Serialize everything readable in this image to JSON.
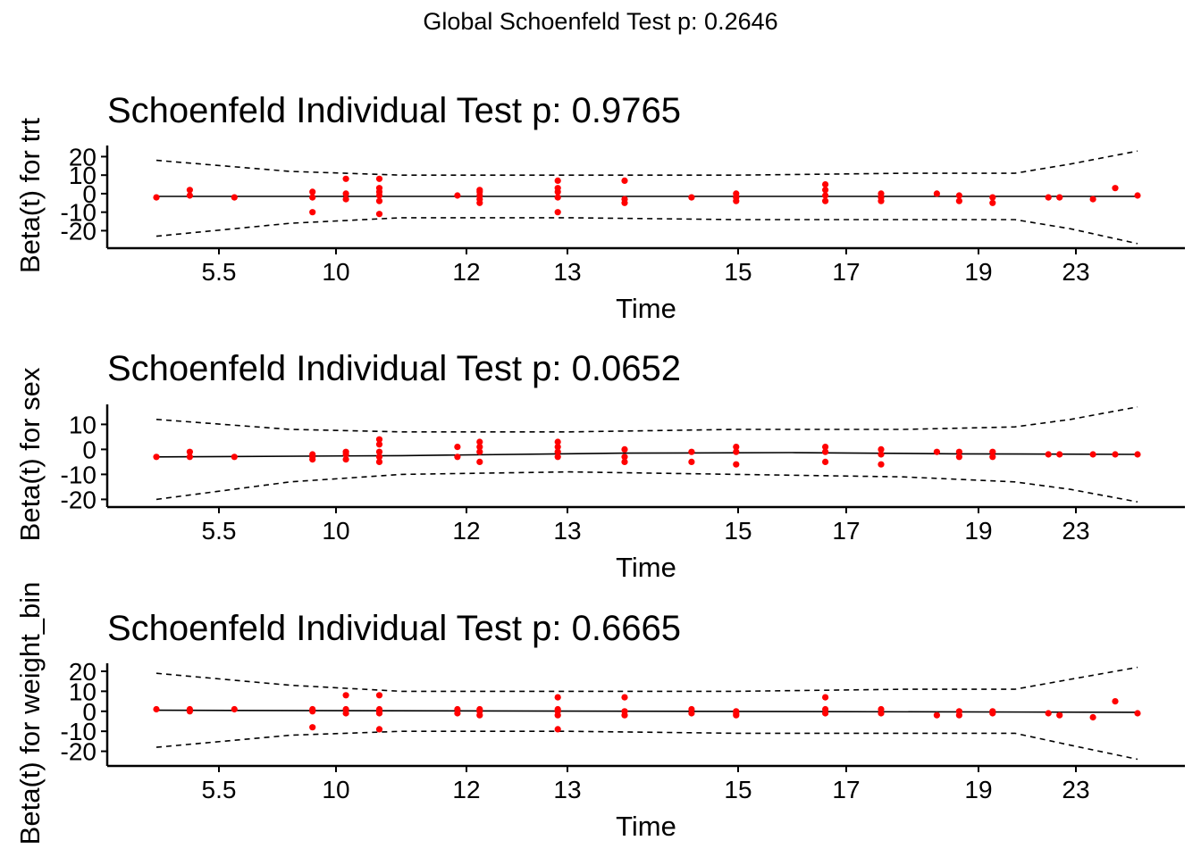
{
  "global_title": "Global Schoenfeld Test p: 0.2646",
  "colors": {
    "points": "#ff0000",
    "lines": "#000000"
  },
  "x_tick_labels": [
    "5.5",
    "10",
    "12",
    "13",
    "15",
    "17",
    "19",
    "23"
  ],
  "chart_data": [
    {
      "type": "scatter",
      "title": "Schoenfeld Individual Test p: 0.9765",
      "xlabel": "Time",
      "ylabel": "Beta(t) for trt",
      "yticks": [
        20,
        10,
        0,
        -10,
        -20
      ],
      "ylim": [
        -28,
        26
      ],
      "x_ticks": [
        "5.5",
        "10",
        "12",
        "13",
        "15",
        "17",
        "19",
        "23"
      ],
      "x": [
        0.3,
        0.6,
        1,
        1.7,
        2,
        2.3,
        3,
        3.5,
        4.3,
        4.5,
        5.1,
        5.3,
        6.3,
        6.8,
        7,
        7.3,
        7.8,
        8.3,
        8.5,
        9.2,
        9.5,
        9.8
      ],
      "points": [
        [
          0.3,
          -2
        ],
        [
          0.6,
          -1
        ],
        [
          0.6,
          2
        ],
        [
          1,
          -2
        ],
        [
          1.7,
          -10
        ],
        [
          1.7,
          -2
        ],
        [
          1.7,
          1
        ],
        [
          2,
          -3
        ],
        [
          2,
          0
        ],
        [
          2,
          8
        ],
        [
          2.3,
          -11
        ],
        [
          2.3,
          -4
        ],
        [
          2.3,
          -1
        ],
        [
          2.3,
          1
        ],
        [
          2.3,
          3
        ],
        [
          2.3,
          8
        ],
        [
          3,
          -1
        ],
        [
          3.2,
          -5
        ],
        [
          3.2,
          -3
        ],
        [
          3.2,
          -1
        ],
        [
          3.2,
          1
        ],
        [
          3.2,
          2
        ],
        [
          3.9,
          -10
        ],
        [
          3.9,
          -2
        ],
        [
          3.9,
          1
        ],
        [
          3.9,
          3
        ],
        [
          3.9,
          7
        ],
        [
          4.5,
          -5
        ],
        [
          4.5,
          -3
        ],
        [
          4.5,
          7
        ],
        [
          5.1,
          -2
        ],
        [
          5.5,
          -4
        ],
        [
          5.5,
          -2
        ],
        [
          5.5,
          0
        ],
        [
          6.3,
          -4
        ],
        [
          6.3,
          -1
        ],
        [
          6.3,
          2
        ],
        [
          6.3,
          5
        ],
        [
          6.8,
          -4
        ],
        [
          6.8,
          -2
        ],
        [
          6.8,
          0
        ],
        [
          7.3,
          0
        ],
        [
          7.5,
          -4
        ],
        [
          7.5,
          -1
        ],
        [
          7.8,
          -5
        ],
        [
          7.8,
          -2
        ],
        [
          8.3,
          -2
        ],
        [
          8.4,
          -2
        ],
        [
          8.7,
          -3
        ],
        [
          8.9,
          3
        ],
        [
          9.1,
          -1
        ]
      ],
      "fit": [
        [
          0.3,
          -1.5
        ],
        [
          9.1,
          -1.5
        ]
      ],
      "ci_upper": [
        [
          0.3,
          18
        ],
        [
          1.5,
          12
        ],
        [
          2.5,
          10
        ],
        [
          4,
          10
        ],
        [
          5.5,
          10
        ],
        [
          7,
          11
        ],
        [
          8,
          11
        ],
        [
          8.5,
          16
        ],
        [
          9.1,
          23
        ]
      ],
      "ci_lower": [
        [
          0.3,
          -23
        ],
        [
          1.5,
          -16
        ],
        [
          2.5,
          -13
        ],
        [
          4,
          -13
        ],
        [
          5.5,
          -14
        ],
        [
          7,
          -14
        ],
        [
          8,
          -14
        ],
        [
          8.5,
          -19
        ],
        [
          9.1,
          -27
        ]
      ]
    },
    {
      "type": "scatter",
      "title": "Schoenfeld Individual Test p: 0.0652",
      "xlabel": "Time",
      "ylabel": "Beta(t) for sex",
      "yticks": [
        10,
        0,
        -10,
        -20
      ],
      "ylim": [
        -22,
        18
      ],
      "x_ticks": [
        "5.5",
        "10",
        "12",
        "13",
        "15",
        "17",
        "19",
        "23"
      ],
      "points": [
        [
          0.3,
          -3
        ],
        [
          0.6,
          -3
        ],
        [
          0.6,
          -1
        ],
        [
          1,
          -3
        ],
        [
          1.7,
          -4
        ],
        [
          1.7,
          -3
        ],
        [
          1.7,
          -2
        ],
        [
          2,
          -4
        ],
        [
          2,
          -2
        ],
        [
          2,
          -1
        ],
        [
          2.3,
          -5
        ],
        [
          2.3,
          -3
        ],
        [
          2.3,
          -1
        ],
        [
          2.3,
          2
        ],
        [
          2.3,
          4
        ],
        [
          3,
          -3
        ],
        [
          3,
          1
        ],
        [
          3.2,
          -5
        ],
        [
          3.2,
          -1
        ],
        [
          3.2,
          1
        ],
        [
          3.2,
          3
        ],
        [
          3.9,
          -3
        ],
        [
          3.9,
          -1
        ],
        [
          3.9,
          1
        ],
        [
          3.9,
          3
        ],
        [
          4.5,
          -5
        ],
        [
          4.5,
          -3
        ],
        [
          4.5,
          0
        ],
        [
          5.1,
          -5
        ],
        [
          5.1,
          -1
        ],
        [
          5.5,
          -6
        ],
        [
          5.5,
          -1
        ],
        [
          5.5,
          1
        ],
        [
          6.3,
          -5
        ],
        [
          6.3,
          -1
        ],
        [
          6.3,
          1
        ],
        [
          6.8,
          -6
        ],
        [
          6.8,
          -2
        ],
        [
          6.8,
          0
        ],
        [
          7.3,
          -1
        ],
        [
          7.5,
          -3
        ],
        [
          7.5,
          -1
        ],
        [
          7.8,
          -3
        ],
        [
          7.8,
          -1
        ],
        [
          8.3,
          -2
        ],
        [
          8.4,
          -2
        ],
        [
          8.7,
          -2
        ],
        [
          8.9,
          -2
        ],
        [
          9.1,
          -2
        ]
      ],
      "fit": [
        [
          0.3,
          -3
        ],
        [
          2.5,
          -2.5
        ],
        [
          4.5,
          -1.5
        ],
        [
          6,
          -1.3
        ],
        [
          7.5,
          -1.8
        ],
        [
          9.1,
          -2
        ]
      ],
      "ci_upper": [
        [
          0.3,
          12
        ],
        [
          1.5,
          8
        ],
        [
          2.5,
          7
        ],
        [
          4,
          7
        ],
        [
          5.5,
          8
        ],
        [
          7,
          8
        ],
        [
          8,
          9
        ],
        [
          8.5,
          12
        ],
        [
          9.1,
          17
        ]
      ],
      "ci_lower": [
        [
          0.3,
          -20
        ],
        [
          1.5,
          -13
        ],
        [
          2.5,
          -10
        ],
        [
          4,
          -9
        ],
        [
          5.5,
          -10
        ],
        [
          7,
          -11
        ],
        [
          8,
          -13
        ],
        [
          8.5,
          -16
        ],
        [
          9.1,
          -21
        ]
      ]
    },
    {
      "type": "scatter",
      "title": "Schoenfeld Individual Test p: 0.6665",
      "xlabel": "Time",
      "ylabel": "Beta(t) for weight_bin",
      "yticks": [
        20,
        10,
        0,
        -10,
        -20
      ],
      "ylim": [
        -26,
        24
      ],
      "x_ticks": [
        "5.5",
        "10",
        "12",
        "13",
        "15",
        "17",
        "19",
        "23"
      ],
      "points": [
        [
          0.3,
          1
        ],
        [
          0.6,
          0
        ],
        [
          0.6,
          1
        ],
        [
          1,
          1
        ],
        [
          1.7,
          -8
        ],
        [
          1.7,
          0
        ],
        [
          1.7,
          1
        ],
        [
          2,
          -1
        ],
        [
          2,
          1
        ],
        [
          2,
          8
        ],
        [
          2.3,
          -9
        ],
        [
          2.3,
          -1
        ],
        [
          2.3,
          0
        ],
        [
          2.3,
          1
        ],
        [
          2.3,
          8
        ],
        [
          3,
          -1
        ],
        [
          3,
          1
        ],
        [
          3.2,
          -2
        ],
        [
          3.2,
          0
        ],
        [
          3.2,
          1
        ],
        [
          3.9,
          -9
        ],
        [
          3.9,
          -2
        ],
        [
          3.9,
          0
        ],
        [
          3.9,
          1
        ],
        [
          3.9,
          7
        ],
        [
          4.5,
          -2
        ],
        [
          4.5,
          0
        ],
        [
          4.5,
          7
        ],
        [
          5.1,
          -1
        ],
        [
          5.1,
          1
        ],
        [
          5.5,
          -2
        ],
        [
          5.5,
          -1
        ],
        [
          5.5,
          0
        ],
        [
          6.3,
          -1
        ],
        [
          6.3,
          1
        ],
        [
          6.3,
          7
        ],
        [
          6.8,
          -1
        ],
        [
          6.8,
          1
        ],
        [
          7.3,
          -2
        ],
        [
          7.5,
          -2
        ],
        [
          7.5,
          0
        ],
        [
          7.8,
          -1
        ],
        [
          7.8,
          0
        ],
        [
          8.3,
          -1
        ],
        [
          8.4,
          -2
        ],
        [
          8.7,
          -3
        ],
        [
          8.9,
          5
        ],
        [
          9.1,
          -1
        ]
      ],
      "fit": [
        [
          0.3,
          0.5
        ],
        [
          9.1,
          -0.5
        ]
      ],
      "ci_upper": [
        [
          0.3,
          19
        ],
        [
          1.5,
          13
        ],
        [
          2.5,
          10
        ],
        [
          4,
          10
        ],
        [
          5.5,
          10
        ],
        [
          7,
          11
        ],
        [
          8,
          11
        ],
        [
          8.5,
          16
        ],
        [
          9.1,
          22
        ]
      ],
      "ci_lower": [
        [
          0.3,
          -18
        ],
        [
          1.5,
          -12
        ],
        [
          2.5,
          -10
        ],
        [
          4,
          -10
        ],
        [
          5.5,
          -11
        ],
        [
          7,
          -11
        ],
        [
          8,
          -11
        ],
        [
          8.5,
          -17
        ],
        [
          9.1,
          -24
        ]
      ]
    }
  ]
}
